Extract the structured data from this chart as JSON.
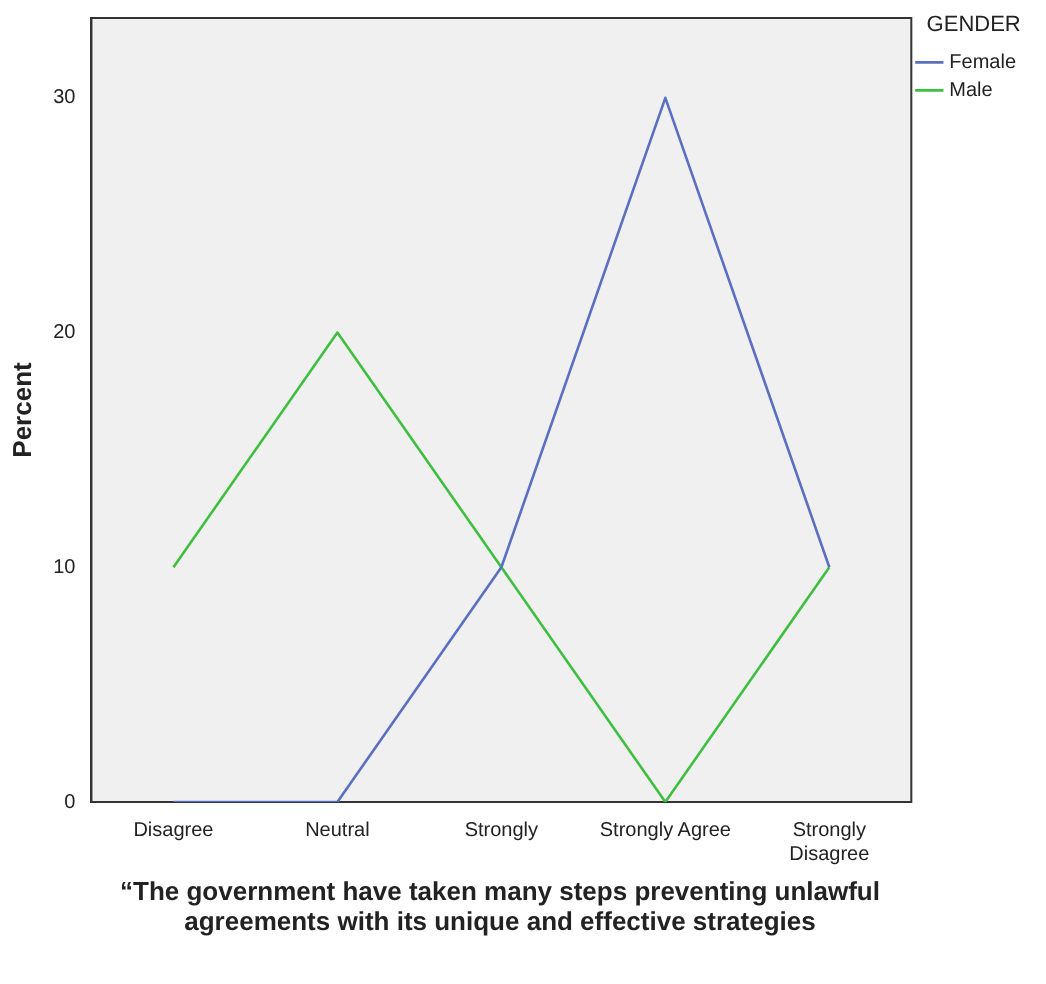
{
  "chart_data": {
    "type": "line",
    "xlabel": "“The government have taken many steps preventing unlawful agreements with its unique and effective strategies",
    "ylabel": "Percent",
    "legend_title": "GENDER",
    "categories": [
      "Disagree",
      "Neutral",
      "Strongly",
      "Strongly Agree",
      "Strongly Disagree"
    ],
    "series": [
      {
        "name": "Female",
        "color": "#5a6fc0",
        "values": [
          0,
          0,
          10,
          30,
          10
        ]
      },
      {
        "name": "Male",
        "color": "#3fbf3f",
        "values": [
          10,
          20,
          10,
          0,
          10
        ]
      }
    ],
    "ylim": [
      0,
      33.4
    ],
    "yticks": [
      0,
      10,
      20,
      30
    ],
    "grid": false,
    "legend": "right",
    "marker": "none",
    "line_style": "solid"
  }
}
